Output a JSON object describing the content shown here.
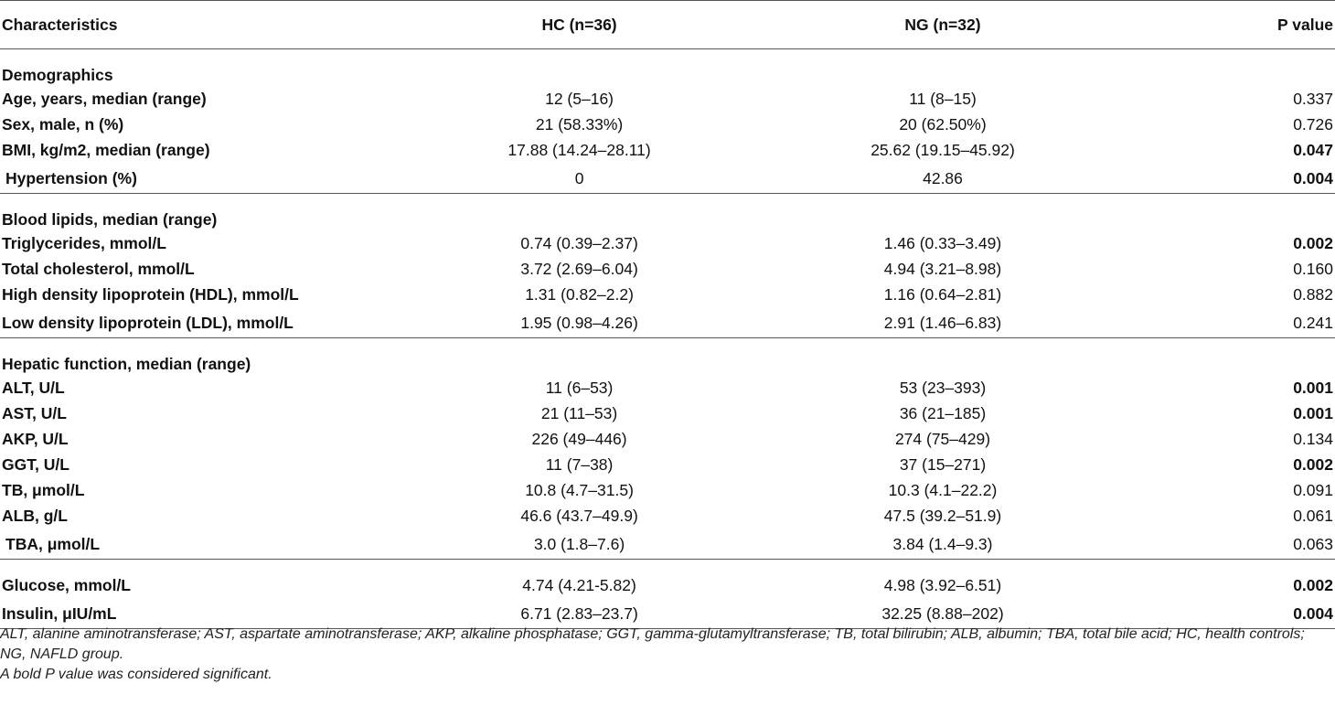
{
  "header": {
    "col_characteristics": "Characteristics",
    "col_hc": "HC (n=36)",
    "col_ng": "NG (n=32)",
    "col_p": "P value"
  },
  "sections": [
    {
      "title": "Demographics",
      "rows": [
        {
          "label": "Age, years, median (range)",
          "hc": "12 (5–16)",
          "ng": "11 (8–15)",
          "p": "0.337",
          "sig": false
        },
        {
          "label": "Sex, male, n (%)",
          "hc": "21 (58.33%)",
          "ng": "20 (62.50%)",
          "p": "0.726",
          "sig": false
        },
        {
          "label": "BMI, kg/m2, median (range)",
          "hc": "17.88 (14.24–28.11)",
          "ng": "25.62 (19.15–45.92)",
          "p": "0.047",
          "sig": true
        },
        {
          "label": "Hypertension (%)",
          "hc": "0",
          "ng": "42.86",
          "p": "0.004",
          "sig": true
        }
      ]
    },
    {
      "title": "Blood lipids, median (range)",
      "rows": [
        {
          "label": "Triglycerides, mmol/L",
          "hc": "0.74 (0.39–2.37)",
          "ng": "1.46 (0.33–3.49)",
          "p": "0.002",
          "sig": true
        },
        {
          "label": "Total cholesterol, mmol/L",
          "hc": "3.72 (2.69–6.04)",
          "ng": "4.94 (3.21–8.98)",
          "p": "0.160",
          "sig": false
        },
        {
          "label": "High density lipoprotein (HDL), mmol/L",
          "hc": "1.31 (0.82–2.2)",
          "ng": "1.16 (0.64–2.81)",
          "p": "0.882",
          "sig": false
        },
        {
          "label": "Low density lipoprotein (LDL), mmol/L",
          "hc": "1.95 (0.98–4.26)",
          "ng": "2.91 (1.46–6.83)",
          "p": "0.241",
          "sig": false
        }
      ]
    },
    {
      "title": "Hepatic function, median (range)",
      "rows": [
        {
          "label": "ALT, U/L",
          "hc": "11 (6–53)",
          "ng": "53 (23–393)",
          "p": "0.001",
          "sig": true
        },
        {
          "label": "AST, U/L",
          "hc": "21 (11–53)",
          "ng": "36 (21–185)",
          "p": "0.001",
          "sig": true
        },
        {
          "label": "AKP, U/L",
          "hc": "226 (49–446)",
          "ng": "274 (75–429)",
          "p": "0.134",
          "sig": false
        },
        {
          "label": "GGT, U/L",
          "hc": "11 (7–38)",
          "ng": "37 (15–271)",
          "p": "0.002",
          "sig": true
        },
        {
          "label": "TB, μmol/L",
          "hc": "10.8 (4.7–31.5)",
          "ng": "10.3 (4.1–22.2)",
          "p": "0.091",
          "sig": false
        },
        {
          "label": "ALB, g/L",
          "hc": "46.6 (43.7–49.9)",
          "ng": "47.5 (39.2–51.9)",
          "p": "0.061",
          "sig": false
        },
        {
          "label": "TBA, μmol/L",
          "hc": "3.0 (1.8–7.6)",
          "ng": "3.84 (1.4–9.3)",
          "p": "0.063",
          "sig": false
        }
      ]
    },
    {
      "title": "",
      "rows": [
        {
          "label": "Glucose, mmol/L",
          "hc": "4.74 (4.21-5.82)",
          "ng": "4.98 (3.92–6.51)",
          "p": "0.002",
          "sig": true
        },
        {
          "label": "Insulin, μIU/mL",
          "hc": "6.71 (2.83–23.7)",
          "ng": "32.25 (8.88–202)",
          "p": "0.004",
          "sig": true
        }
      ]
    }
  ],
  "footnotes": {
    "abbreviations": "ALT, alanine aminotransferase; AST, aspartate aminotransferase; AKP, alkaline phosphatase; GGT, gamma-glutamyltransferase; TB, total bilirubin; ALB, albumin; TBA, total bile acid; HC, health controls; NG, NAFLD group.",
    "significance": "A bold P value was considered significant."
  }
}
